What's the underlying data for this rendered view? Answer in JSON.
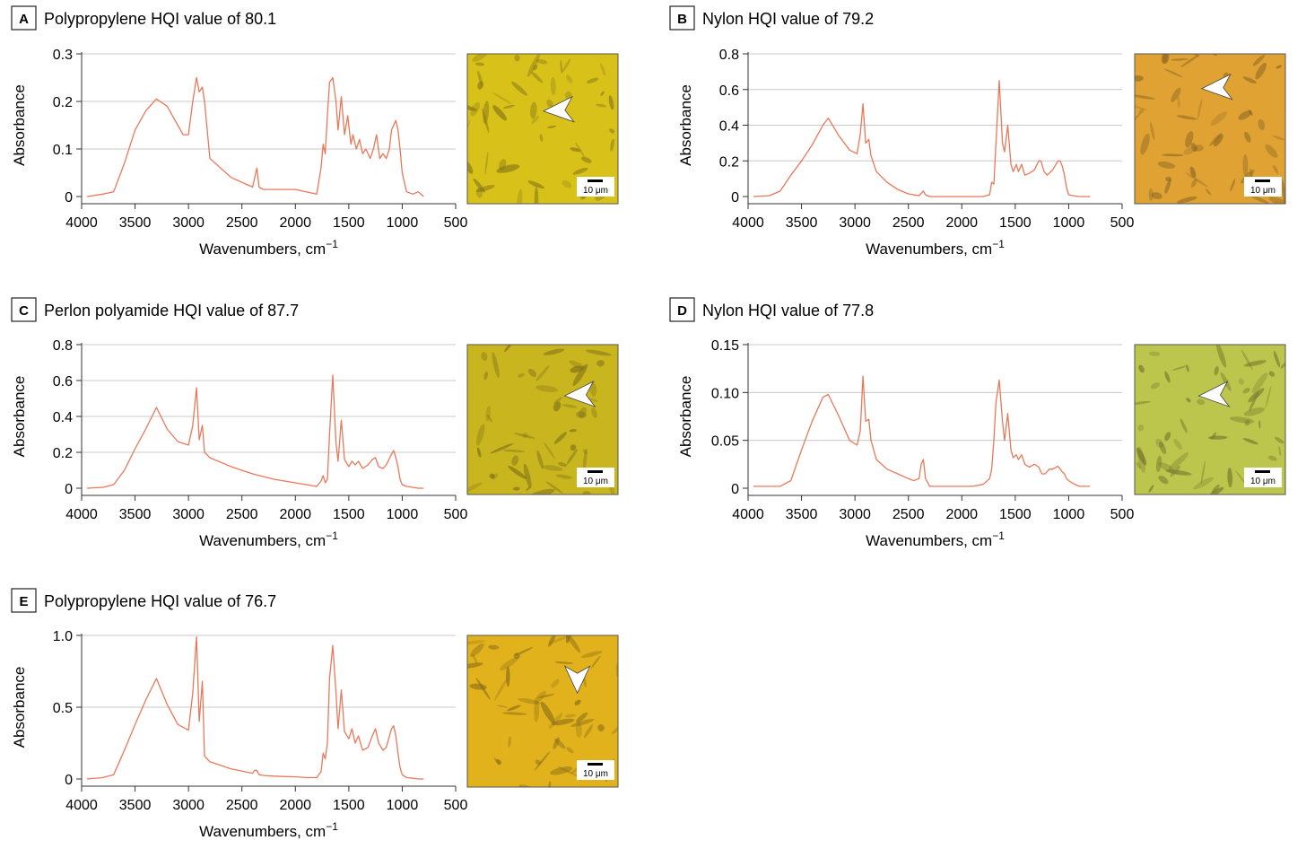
{
  "chart_data": [
    {
      "panel": "A",
      "title": "Polypropylene HQI value of 80.1",
      "type": "line",
      "xlabel": "Wavenumbers, cm",
      "xlabel_sup": "−1",
      "ylabel": "Absorbance",
      "xlim": [
        4000,
        500
      ],
      "ylim": [
        0,
        0.3
      ],
      "xticks": [
        4000,
        3500,
        3000,
        2500,
        2000,
        1500,
        1000,
        500
      ],
      "yticks": [
        {
          "v": 0,
          "l": "0"
        },
        {
          "v": 0.1,
          "l": "0.1"
        },
        {
          "v": 0.2,
          "l": "0.2"
        },
        {
          "v": 0.3,
          "l": "0.3"
        }
      ],
      "grid": true,
      "series": [
        {
          "name": "spectrum",
          "color": "#e9785a",
          "x": [
            3950,
            3800,
            3700,
            3600,
            3500,
            3400,
            3300,
            3200,
            3100,
            3050,
            3000,
            2960,
            2925,
            2900,
            2870,
            2850,
            2800,
            2700,
            2600,
            2500,
            2400,
            2360,
            2340,
            2300,
            2200,
            2100,
            2000,
            1900,
            1800,
            1760,
            1740,
            1720,
            1700,
            1680,
            1650,
            1620,
            1600,
            1570,
            1540,
            1510,
            1480,
            1460,
            1430,
            1400,
            1370,
            1340,
            1300,
            1270,
            1240,
            1210,
            1180,
            1150,
            1120,
            1100,
            1080,
            1060,
            1040,
            1020,
            1000,
            960,
            900,
            850,
            800
          ],
          "y": [
            0.0,
            0.005,
            0.01,
            0.07,
            0.14,
            0.18,
            0.205,
            0.19,
            0.15,
            0.13,
            0.13,
            0.2,
            0.25,
            0.22,
            0.23,
            0.2,
            0.08,
            0.06,
            0.04,
            0.03,
            0.02,
            0.06,
            0.02,
            0.015,
            0.015,
            0.015,
            0.015,
            0.01,
            0.005,
            0.06,
            0.11,
            0.09,
            0.17,
            0.24,
            0.25,
            0.2,
            0.14,
            0.21,
            0.13,
            0.17,
            0.11,
            0.13,
            0.1,
            0.12,
            0.09,
            0.1,
            0.08,
            0.1,
            0.13,
            0.08,
            0.09,
            0.08,
            0.1,
            0.14,
            0.15,
            0.16,
            0.14,
            0.1,
            0.05,
            0.01,
            0.005,
            0.01,
            0.0
          ]
        }
      ],
      "image": {
        "tone": "#d8c21a",
        "scale_label": "10 μm",
        "arrow": {
          "x": 0.66,
          "y": 0.37,
          "dir": "left"
        }
      }
    },
    {
      "panel": "B",
      "title": "Nylon HQI value of 79.2",
      "type": "line",
      "xlabel": "Wavenumbers, cm",
      "xlabel_sup": "−1",
      "ylabel": "Absorbance",
      "xlim": [
        4000,
        500
      ],
      "ylim": [
        0,
        0.8
      ],
      "xticks": [
        4000,
        3500,
        3000,
        2500,
        2000,
        1500,
        1000,
        500
      ],
      "yticks": [
        {
          "v": 0,
          "l": "0"
        },
        {
          "v": 0.2,
          "l": "0.2"
        },
        {
          "v": 0.4,
          "l": "0.4"
        },
        {
          "v": 0.6,
          "l": "0.6"
        },
        {
          "v": 0.8,
          "l": "0.8"
        }
      ],
      "grid": true,
      "series": [
        {
          "name": "spectrum",
          "color": "#e9785a",
          "x": [
            3950,
            3800,
            3700,
            3600,
            3500,
            3400,
            3300,
            3250,
            3150,
            3050,
            2980,
            2950,
            2925,
            2900,
            2870,
            2850,
            2800,
            2700,
            2600,
            2500,
            2400,
            2360,
            2340,
            2300,
            2200,
            2000,
            1800,
            1740,
            1720,
            1700,
            1680,
            1650,
            1620,
            1600,
            1570,
            1540,
            1520,
            1490,
            1470,
            1440,
            1410,
            1370,
            1320,
            1280,
            1260,
            1230,
            1200,
            1150,
            1100,
            1080,
            1060,
            1040,
            1020,
            1000,
            960,
            900,
            850,
            800
          ],
          "y": [
            0.0,
            0.005,
            0.03,
            0.12,
            0.2,
            0.29,
            0.4,
            0.44,
            0.34,
            0.26,
            0.24,
            0.35,
            0.52,
            0.3,
            0.32,
            0.23,
            0.14,
            0.08,
            0.04,
            0.015,
            0.005,
            0.03,
            0.01,
            0.0,
            0.0,
            0.0,
            0.0,
            0.01,
            0.08,
            0.07,
            0.3,
            0.65,
            0.3,
            0.25,
            0.4,
            0.18,
            0.14,
            0.18,
            0.14,
            0.18,
            0.12,
            0.13,
            0.15,
            0.2,
            0.2,
            0.14,
            0.12,
            0.15,
            0.2,
            0.2,
            0.17,
            0.12,
            0.05,
            0.01,
            0.005,
            0.0,
            0.0,
            0.0
          ]
        }
      ],
      "image": {
        "tone": "#e0a233",
        "scale_label": "10 μm",
        "arrow": {
          "x": 0.6,
          "y": 0.22,
          "dir": "left"
        }
      }
    },
    {
      "panel": "C",
      "title": "Perlon polyamide HQI value of 87.7",
      "type": "line",
      "xlabel": "Wavenumbers, cm",
      "xlabel_sup": "−1",
      "ylabel": "Absorbance",
      "xlim": [
        4000,
        500
      ],
      "ylim": [
        0,
        0.8
      ],
      "xticks": [
        4000,
        3500,
        3000,
        2500,
        2000,
        1500,
        1000,
        500
      ],
      "yticks": [
        {
          "v": 0,
          "l": "0"
        },
        {
          "v": 0.2,
          "l": "0.2"
        },
        {
          "v": 0.4,
          "l": "0.4"
        },
        {
          "v": 0.6,
          "l": "0.6"
        },
        {
          "v": 0.8,
          "l": "0.8"
        }
      ],
      "grid": true,
      "series": [
        {
          "name": "spectrum",
          "color": "#e9785a",
          "x": [
            3950,
            3800,
            3700,
            3600,
            3500,
            3400,
            3300,
            3200,
            3100,
            3000,
            2960,
            2925,
            2900,
            2870,
            2850,
            2800,
            2600,
            2400,
            2200,
            2000,
            1900,
            1800,
            1760,
            1740,
            1720,
            1700,
            1680,
            1650,
            1620,
            1600,
            1570,
            1540,
            1500,
            1470,
            1440,
            1410,
            1370,
            1320,
            1280,
            1250,
            1220,
            1180,
            1150,
            1100,
            1080,
            1060,
            1040,
            1020,
            1000,
            960,
            900,
            850,
            800
          ],
          "y": [
            0.0,
            0.005,
            0.02,
            0.1,
            0.22,
            0.33,
            0.45,
            0.33,
            0.26,
            0.24,
            0.35,
            0.56,
            0.27,
            0.35,
            0.2,
            0.17,
            0.12,
            0.08,
            0.05,
            0.03,
            0.02,
            0.01,
            0.04,
            0.07,
            0.03,
            0.05,
            0.3,
            0.63,
            0.25,
            0.15,
            0.38,
            0.16,
            0.12,
            0.15,
            0.13,
            0.15,
            0.11,
            0.13,
            0.16,
            0.17,
            0.12,
            0.11,
            0.13,
            0.19,
            0.21,
            0.17,
            0.12,
            0.05,
            0.02,
            0.01,
            0.005,
            0.0,
            0.0
          ]
        }
      ],
      "image": {
        "tone": "#c9b61e",
        "scale_label": "10 μm",
        "arrow": {
          "x": 0.8,
          "y": 0.33,
          "dir": "left"
        }
      }
    },
    {
      "panel": "D",
      "title": "Nylon HQI value of 77.8",
      "type": "line",
      "xlabel": "Wavenumbers, cm",
      "xlabel_sup": "−1",
      "ylabel": "Absorbance",
      "xlim": [
        4000,
        500
      ],
      "ylim": [
        0,
        0.15
      ],
      "xticks": [
        4000,
        3500,
        3000,
        2500,
        2000,
        1500,
        1000,
        500
      ],
      "yticks": [
        {
          "v": 0,
          "l": "0"
        },
        {
          "v": 0.05,
          "l": "0.05"
        },
        {
          "v": 0.1,
          "l": "0.10"
        },
        {
          "v": 0.15,
          "l": "0.15"
        }
      ],
      "grid": true,
      "series": [
        {
          "name": "spectrum",
          "color": "#e9785a",
          "x": [
            3950,
            3800,
            3700,
            3600,
            3500,
            3400,
            3300,
            3250,
            3150,
            3050,
            2980,
            2950,
            2925,
            2900,
            2870,
            2850,
            2800,
            2700,
            2600,
            2500,
            2450,
            2400,
            2380,
            2360,
            2340,
            2300,
            2200,
            2100,
            2000,
            1900,
            1800,
            1740,
            1720,
            1700,
            1680,
            1650,
            1620,
            1600,
            1570,
            1540,
            1520,
            1490,
            1470,
            1440,
            1410,
            1370,
            1320,
            1280,
            1250,
            1220,
            1180,
            1150,
            1100,
            1080,
            1060,
            1040,
            1020,
            1000,
            960,
            900,
            850,
            800
          ],
          "y": [
            0.002,
            0.002,
            0.002,
            0.008,
            0.04,
            0.07,
            0.095,
            0.098,
            0.075,
            0.05,
            0.045,
            0.06,
            0.117,
            0.07,
            0.072,
            0.05,
            0.03,
            0.02,
            0.015,
            0.01,
            0.008,
            0.01,
            0.025,
            0.03,
            0.01,
            0.002,
            0.002,
            0.002,
            0.002,
            0.002,
            0.004,
            0.01,
            0.02,
            0.05,
            0.09,
            0.113,
            0.07,
            0.05,
            0.078,
            0.04,
            0.032,
            0.035,
            0.03,
            0.035,
            0.025,
            0.022,
            0.025,
            0.022,
            0.015,
            0.015,
            0.02,
            0.02,
            0.023,
            0.02,
            0.017,
            0.015,
            0.01,
            0.008,
            0.005,
            0.002,
            0.002,
            0.002
          ]
        }
      ],
      "image": {
        "tone": "#bcc64c",
        "scale_label": "10 μm",
        "arrow": {
          "x": 0.58,
          "y": 0.33,
          "dir": "left"
        }
      }
    },
    {
      "panel": "E",
      "title": "Polypropylene HQI value of 76.7",
      "type": "line",
      "xlabel": "Wavenumbers, cm",
      "xlabel_sup": "−1",
      "ylabel": "Absorbance",
      "xlim": [
        4000,
        500
      ],
      "ylim": [
        0,
        1.0
      ],
      "xticks": [
        4000,
        3500,
        3000,
        2500,
        2000,
        1500,
        1000,
        500
      ],
      "yticks": [
        {
          "v": 0,
          "l": "0"
        },
        {
          "v": 0.5,
          "l": "0.5"
        },
        {
          "v": 1.0,
          "l": "1.0"
        }
      ],
      "grid": true,
      "series": [
        {
          "name": "spectrum",
          "color": "#e9785a",
          "x": [
            3950,
            3800,
            3700,
            3600,
            3500,
            3400,
            3300,
            3200,
            3100,
            3000,
            2960,
            2925,
            2900,
            2870,
            2850,
            2800,
            2600,
            2400,
            2380,
            2360,
            2340,
            2300,
            2200,
            2000,
            1900,
            1800,
            1760,
            1740,
            1720,
            1700,
            1680,
            1650,
            1620,
            1600,
            1570,
            1540,
            1500,
            1470,
            1440,
            1410,
            1370,
            1320,
            1280,
            1250,
            1220,
            1180,
            1150,
            1100,
            1080,
            1060,
            1040,
            1020,
            1000,
            960,
            900,
            850,
            800
          ],
          "y": [
            0.0,
            0.01,
            0.03,
            0.2,
            0.38,
            0.55,
            0.7,
            0.52,
            0.38,
            0.34,
            0.6,
            0.99,
            0.4,
            0.68,
            0.16,
            0.12,
            0.07,
            0.04,
            0.06,
            0.06,
            0.03,
            0.025,
            0.02,
            0.015,
            0.01,
            0.01,
            0.05,
            0.18,
            0.14,
            0.25,
            0.7,
            0.93,
            0.6,
            0.35,
            0.62,
            0.33,
            0.28,
            0.35,
            0.25,
            0.3,
            0.2,
            0.22,
            0.3,
            0.35,
            0.25,
            0.2,
            0.22,
            0.35,
            0.37,
            0.3,
            0.18,
            0.08,
            0.03,
            0.01,
            0.005,
            0.0,
            0.0
          ]
        }
      ],
      "image": {
        "tone": "#e2b21c",
        "scale_label": "10 μm",
        "arrow": {
          "x": 0.73,
          "y": 0.25,
          "dir": "down"
        }
      }
    }
  ]
}
